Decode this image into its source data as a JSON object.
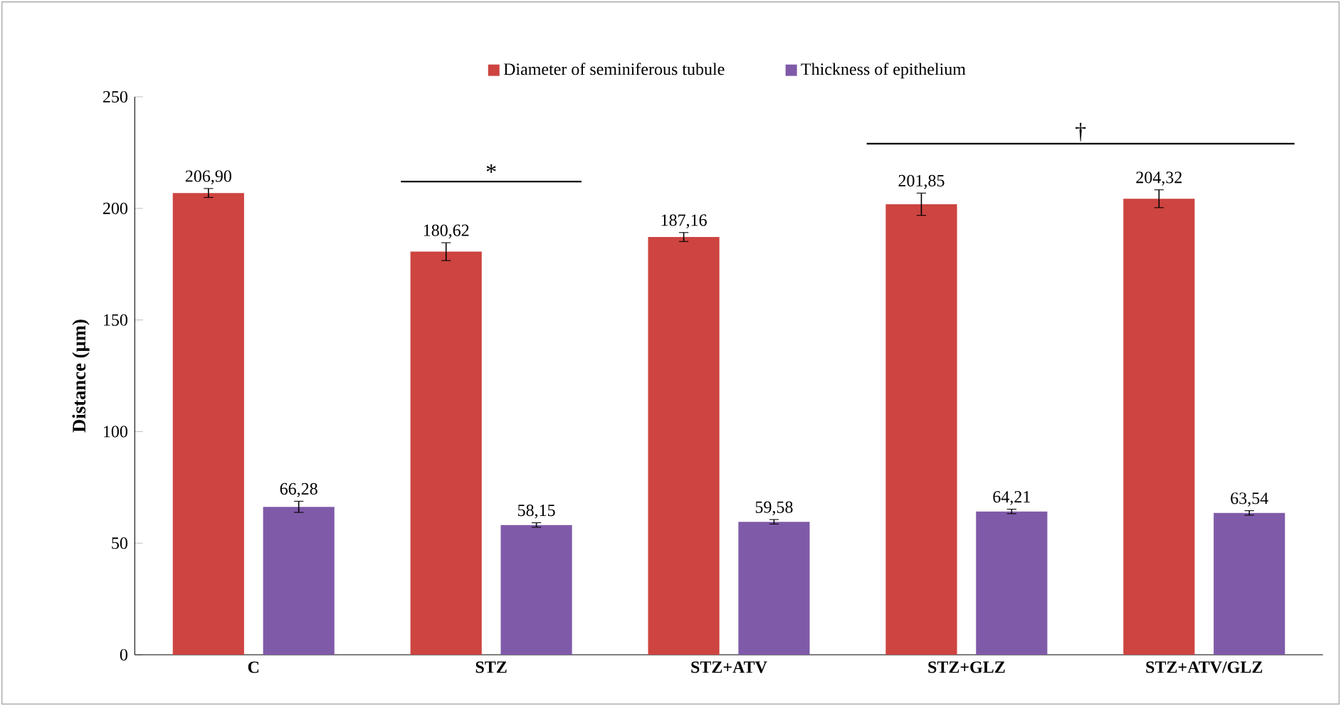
{
  "chart_data": {
    "type": "bar",
    "ylabel": "Distance (µm)",
    "categories": [
      "C",
      "STZ",
      "STZ+ATV",
      "STZ+GLZ",
      "STZ+ATV/GLZ"
    ],
    "series": [
      {
        "name": "Diameter of seminiferous tubule",
        "color": "#cd4440",
        "values": [
          206.9,
          180.62,
          187.16,
          201.85,
          204.32
        ],
        "errors": [
          2,
          4,
          2,
          5,
          4
        ],
        "value_labels": [
          "206,90",
          "180,62",
          "187,16",
          "201,85",
          "204,32"
        ]
      },
      {
        "name": "Thickness of epithelium",
        "color": "#7f5aa8",
        "values": [
          66.28,
          58.15,
          59.58,
          64.21,
          63.54
        ],
        "errors": [
          2.5,
          1,
          1,
          1,
          1
        ],
        "value_labels": [
          "66,28",
          "58,15",
          "59,58",
          "64,21",
          "63,54"
        ]
      }
    ],
    "ylim": [
      0,
      250
    ],
    "yticks": [
      0,
      50,
      100,
      150,
      200,
      250
    ],
    "legend": "top",
    "grid": false,
    "annotations": [
      "*",
      "†"
    ]
  }
}
